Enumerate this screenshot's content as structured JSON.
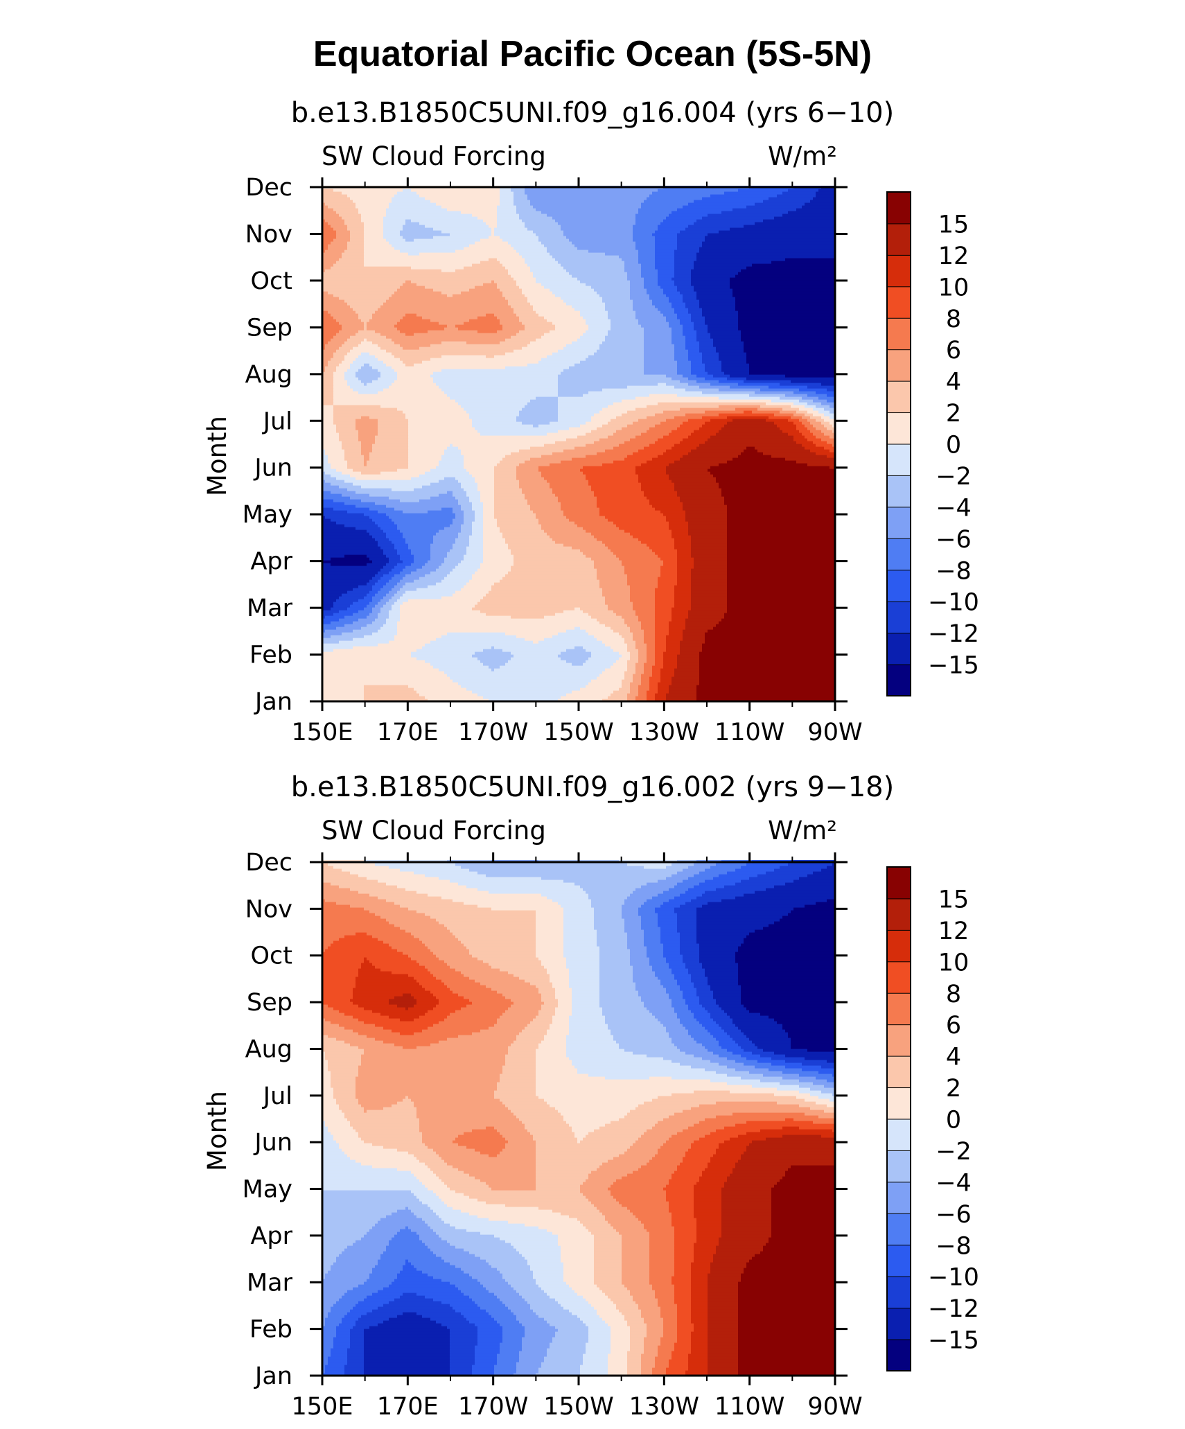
{
  "title": "Equatorial Pacific Ocean (5S-5N)",
  "chart_data": [
    {
      "type": "heatmap",
      "subtitle": "b.e13.B1850C5UNI.f09_g16.004 (yrs 6−10)",
      "left_label": "SW Cloud Forcing",
      "units_label": "W/m²",
      "ylabel": "Month",
      "x_ticks": [
        "150E",
        "170E",
        "170W",
        "150W",
        "130W",
        "110W",
        "90W"
      ],
      "y_ticks": [
        "Jan",
        "Feb",
        "Mar",
        "Apr",
        "May",
        "Jun",
        "Jul",
        "Aug",
        "Sep",
        "Oct",
        "Nov",
        "Dec"
      ],
      "colorbar_ticks": [
        "15",
        "12",
        "10",
        "8",
        "6",
        "4",
        "2",
        "0",
        "−2",
        "−4",
        "−6",
        "−8",
        "−10",
        "−12",
        "−15"
      ],
      "levels": [
        -15,
        -12,
        -10,
        -8,
        -6,
        -4,
        -2,
        0,
        2,
        4,
        6,
        8,
        10,
        12,
        15
      ],
      "colors": [
        "#04007f",
        "#0a1fb0",
        "#1a3fd6",
        "#2c5bf0",
        "#4f7df3",
        "#7ea0f5",
        "#a9c3f7",
        "#d6e5fb",
        "#fde6d8",
        "#fbc7ac",
        "#f8a27e",
        "#f57a4f",
        "#f04e23",
        "#d62d0b",
        "#b31f0a",
        "#880202"
      ],
      "lon": [
        150,
        160,
        170,
        180,
        190,
        200,
        210,
        220,
        230,
        240,
        250,
        260,
        270
      ],
      "months": [
        "Jan",
        "Feb",
        "Mar",
        "Apr",
        "May",
        "Jun",
        "Jul",
        "Aug",
        "Sep",
        "Oct",
        "Nov",
        "Dec"
      ],
      "values": [
        [
          2,
          2,
          3,
          1,
          0,
          -1,
          1,
          3,
          12,
          16,
          16,
          16,
          15
        ],
        [
          1,
          2,
          0,
          -1,
          -3,
          -1,
          -3,
          0,
          10,
          16,
          16,
          16,
          16
        ],
        [
          -13,
          -8,
          2,
          1,
          3,
          3,
          2,
          5,
          9,
          14,
          16,
          16,
          16
        ],
        [
          -15,
          -16,
          -9,
          -3,
          1,
          3,
          3,
          6,
          8,
          14,
          16,
          16,
          16
        ],
        [
          -12,
          -10,
          -6,
          -7,
          2,
          4,
          7,
          9,
          10,
          14,
          16,
          16,
          16
        ],
        [
          -1,
          4,
          2,
          -1,
          2,
          6,
          8,
          9,
          12,
          15,
          16,
          16,
          15
        ],
        [
          1,
          5,
          2,
          1,
          -1,
          -3,
          -1,
          3,
          6,
          10,
          14,
          10,
          0
        ],
        [
          4,
          -4,
          1,
          -1,
          -1,
          -1,
          -3,
          -4,
          -4,
          -10,
          -15,
          -16,
          -16
        ],
        [
          8,
          4,
          7,
          6,
          7,
          3,
          1,
          -3,
          -5,
          -12,
          -16,
          -16,
          -16
        ],
        [
          3,
          2,
          4,
          3,
          4,
          0,
          -2,
          -3,
          -9,
          -14,
          -16,
          -16,
          -16
        ],
        [
          8,
          2,
          -3,
          -2,
          0,
          -2,
          -5,
          -5,
          -9,
          -12,
          -13,
          -14,
          -14
        ],
        [
          2,
          1,
          0,
          2,
          1,
          -6,
          -5,
          -5,
          -6,
          -7,
          -8,
          -10,
          -13
        ]
      ]
    },
    {
      "type": "heatmap",
      "subtitle": "b.e13.B1850C5UNI.f09_g16.002 (yrs 9−18)",
      "left_label": "SW Cloud Forcing",
      "units_label": "W/m²",
      "ylabel": "Month",
      "x_ticks": [
        "150E",
        "170E",
        "170W",
        "150W",
        "130W",
        "110W",
        "90W"
      ],
      "y_ticks": [
        "Jan",
        "Feb",
        "Mar",
        "Apr",
        "May",
        "Jun",
        "Jul",
        "Aug",
        "Sep",
        "Oct",
        "Nov",
        "Dec"
      ],
      "colorbar_ticks": [
        "15",
        "12",
        "10",
        "8",
        "6",
        "4",
        "2",
        "0",
        "−2",
        "−4",
        "−6",
        "−8",
        "−10",
        "−12",
        "−15"
      ],
      "levels": [
        -15,
        -12,
        -10,
        -8,
        -6,
        -4,
        -2,
        0,
        2,
        4,
        6,
        8,
        10,
        12,
        15
      ],
      "colors": [
        "#04007f",
        "#0a1fb0",
        "#1a3fd6",
        "#2c5bf0",
        "#4f7df3",
        "#7ea0f5",
        "#a9c3f7",
        "#d6e5fb",
        "#fde6d8",
        "#fbc7ac",
        "#f8a27e",
        "#f57a4f",
        "#f04e23",
        "#d62d0b",
        "#b31f0a",
        "#880202"
      ],
      "lon": [
        150,
        160,
        170,
        180,
        190,
        200,
        210,
        220,
        230,
        240,
        250,
        260,
        270
      ],
      "months": [
        "Jan",
        "Feb",
        "Mar",
        "Apr",
        "May",
        "Jun",
        "Jul",
        "Aug",
        "Sep",
        "Oct",
        "Nov",
        "Dec"
      ],
      "values": [
        [
          -8,
          -12,
          -13,
          -12,
          -8,
          -4,
          -2,
          1,
          8,
          12,
          16,
          16,
          16
        ],
        [
          -6,
          -12,
          -14,
          -12,
          -9,
          -5,
          -3,
          1,
          6,
          12,
          16,
          16,
          16
        ],
        [
          -4,
          -6,
          -9,
          -8,
          -5,
          -2,
          1,
          4,
          7,
          12,
          16,
          16,
          16
        ],
        [
          -3,
          -4,
          -7,
          -3,
          -2,
          -1,
          1,
          4,
          7,
          11,
          14,
          16,
          16
        ],
        [
          -2,
          -2,
          -2,
          2,
          4,
          4,
          4,
          7,
          8,
          11,
          14,
          16,
          16
        ],
        [
          -1,
          2,
          3,
          6,
          7,
          4,
          2,
          3,
          6,
          9,
          12,
          14,
          14
        ],
        [
          1,
          5,
          4,
          5,
          4,
          2,
          1,
          1,
          2,
          3,
          3,
          2,
          -2
        ],
        [
          2,
          4,
          6,
          5,
          5,
          2,
          -1,
          -2,
          -3,
          -6,
          -11,
          -15,
          -16
        ],
        [
          8,
          11,
          13,
          9,
          7,
          5,
          -1,
          -3,
          -5,
          -11,
          -16,
          -16,
          -16
        ],
        [
          8,
          10,
          8,
          5,
          3,
          2,
          -1,
          -3,
          -8,
          -13,
          -16,
          -16,
          -16
        ],
        [
          7,
          6,
          4,
          3,
          2,
          2,
          -1,
          -4,
          -9,
          -13,
          -14,
          -15,
          -16
        ],
        [
          2,
          0,
          -1,
          -2,
          -4,
          -4,
          -3,
          -2,
          -1,
          -5,
          -8,
          -10,
          -12
        ]
      ]
    }
  ]
}
